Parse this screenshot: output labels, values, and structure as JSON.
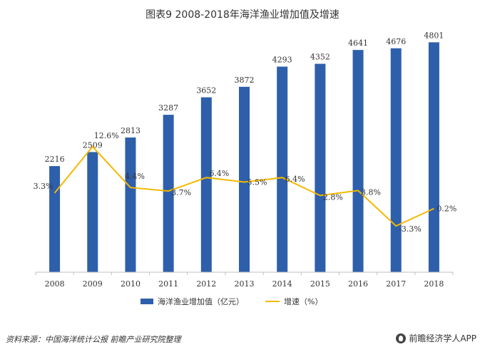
{
  "title": "图表9  2008-2018年海洋渔业增加值及增速",
  "source": "资料来源：中国海洋统计公报 前瞻产业研究院整理",
  "brand": "前瞻经济学人APP",
  "colors": {
    "bar": "#2E5FAB",
    "line": "#F5B800",
    "axis": "#BFBFBF",
    "text": "#333333"
  },
  "chart_data": {
    "type": "bar",
    "categories": [
      "2008",
      "2009",
      "2010",
      "2011",
      "2012",
      "2013",
      "2014",
      "2015",
      "2016",
      "2017",
      "2018"
    ],
    "series": [
      {
        "name": "海洋渔业增加值（亿元）",
        "type": "bar",
        "axis": "left",
        "values": [
          2216,
          2509,
          2813,
          3287,
          3652,
          3872,
          4293,
          4352,
          4641,
          4676,
          4801
        ],
        "labels": [
          "2216",
          "2509",
          "2813",
          "3287",
          "3652",
          "3872",
          "4293",
          "4352",
          "4641",
          "4676",
          "4801"
        ]
      },
      {
        "name": "增速（%）",
        "type": "line",
        "axis": "right",
        "values": [
          3.3,
          12.6,
          4.4,
          3.7,
          6.4,
          5.5,
          6.4,
          2.8,
          3.8,
          -3.3,
          0.2
        ],
        "labels": [
          "3.3%",
          "12.6%",
          "4.4%",
          "3.7%",
          "6.4%",
          "5.5%",
          "6.4%",
          "2.8%",
          "3.8%",
          "-3.3%",
          "0.2%"
        ]
      }
    ],
    "left_ylim": [
      0,
      5500
    ],
    "right_ylim": [
      -5,
      15
    ],
    "grid": false,
    "legend": "bottom"
  }
}
